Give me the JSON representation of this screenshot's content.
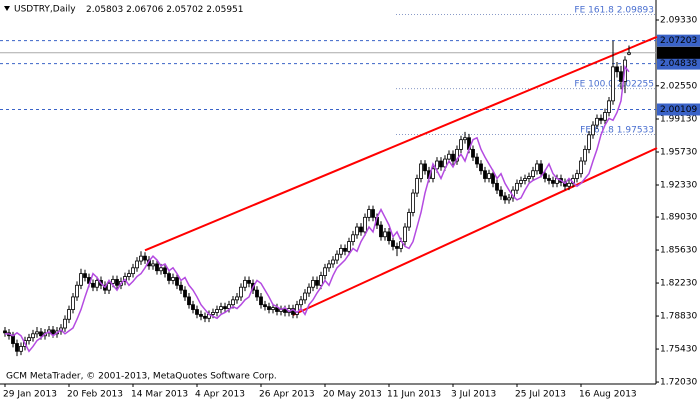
{
  "chart_data": {
    "type": "candlestick",
    "symbol": "USDTRY,Daily",
    "footer": "GCM MetaTrader, © 2001-2013, MetaQuotes Software Corp.",
    "candle_color": "#000000",
    "ma_color": "#b44be1",
    "categories": [
      "29 Jan 2013",
      null,
      null,
      null,
      null,
      null,
      null,
      null,
      null,
      null,
      null,
      null,
      null,
      null,
      null,
      null,
      "20 Feb 2013",
      null,
      null,
      null,
      null,
      null,
      null,
      null,
      null,
      null,
      null,
      null,
      null,
      null,
      null,
      null,
      "14 Mar 2013",
      null,
      null,
      null,
      null,
      null,
      null,
      null,
      null,
      null,
      null,
      null,
      null,
      null,
      null,
      null,
      "4 Apr 2013",
      null,
      null,
      null,
      null,
      null,
      null,
      null,
      null,
      null,
      null,
      null,
      null,
      null,
      null,
      null,
      "26 Apr 2013",
      null,
      null,
      null,
      null,
      null,
      null,
      null,
      null,
      null,
      null,
      null,
      null,
      null,
      null,
      null,
      "20 May 2013",
      null,
      null,
      null,
      null,
      null,
      null,
      null,
      null,
      null,
      null,
      null,
      null,
      null,
      null,
      null,
      "11 Jun 2013",
      null,
      null,
      null,
      null,
      null,
      null,
      null,
      null,
      null,
      null,
      null,
      null,
      null,
      null,
      null,
      "3 Jul 2013",
      null,
      null,
      null,
      null,
      null,
      null,
      null,
      null,
      null,
      null,
      null,
      null,
      null,
      null,
      null,
      "25 Jul 2013",
      null,
      null,
      null,
      null,
      null,
      null,
      null,
      null,
      null,
      null,
      null,
      null,
      null,
      null,
      null,
      "16 Aug 2013",
      null,
      null,
      null,
      null,
      null,
      null,
      null,
      null,
      null,
      null,
      null,
      null
    ],
    "ohlc": [
      [
        1.773,
        1.777,
        1.767,
        1.771
      ],
      [
        1.771,
        1.775,
        1.764,
        1.768
      ],
      [
        1.768,
        1.772,
        1.756,
        1.76
      ],
      [
        1.76,
        1.764,
        1.747,
        1.752
      ],
      [
        1.752,
        1.761,
        1.748,
        1.757
      ],
      [
        1.757,
        1.767,
        1.753,
        1.763
      ],
      [
        1.763,
        1.77,
        1.759,
        1.766
      ],
      [
        1.766,
        1.774,
        1.762,
        1.77
      ],
      [
        1.77,
        1.777,
        1.766,
        1.772
      ],
      [
        1.772,
        1.776,
        1.764,
        1.768
      ],
      [
        1.768,
        1.775,
        1.764,
        1.771
      ],
      [
        1.771,
        1.778,
        1.767,
        1.774
      ],
      [
        1.774,
        1.778,
        1.766,
        1.77
      ],
      [
        1.77,
        1.777,
        1.766,
        1.773
      ],
      [
        1.773,
        1.78,
        1.769,
        1.776
      ],
      [
        1.776,
        1.789,
        1.772,
        1.785
      ],
      [
        1.785,
        1.799,
        1.781,
        1.795
      ],
      [
        1.795,
        1.812,
        1.791,
        1.808
      ],
      [
        1.808,
        1.824,
        1.804,
        1.82
      ],
      [
        1.82,
        1.837,
        1.816,
        1.832
      ],
      [
        1.832,
        1.836,
        1.824,
        1.828
      ],
      [
        1.828,
        1.832,
        1.818,
        1.822
      ],
      [
        1.822,
        1.826,
        1.814,
        1.818
      ],
      [
        1.818,
        1.829,
        1.814,
        1.825
      ],
      [
        1.825,
        1.829,
        1.816,
        1.82
      ],
      [
        1.82,
        1.824,
        1.811,
        1.815
      ],
      [
        1.815,
        1.826,
        1.811,
        1.822
      ],
      [
        1.822,
        1.83,
        1.818,
        1.826
      ],
      [
        1.826,
        1.83,
        1.816,
        1.82
      ],
      [
        1.82,
        1.828,
        1.816,
        1.824
      ],
      [
        1.824,
        1.833,
        1.82,
        1.829
      ],
      [
        1.829,
        1.836,
        1.825,
        1.832
      ],
      [
        1.832,
        1.842,
        1.828,
        1.838
      ],
      [
        1.838,
        1.849,
        1.834,
        1.845
      ],
      [
        1.845,
        1.855,
        1.841,
        1.85
      ],
      [
        1.85,
        1.854,
        1.842,
        1.846
      ],
      [
        1.846,
        1.85,
        1.836,
        1.84
      ],
      [
        1.84,
        1.846,
        1.836,
        1.842
      ],
      [
        1.842,
        1.846,
        1.831,
        1.835
      ],
      [
        1.835,
        1.842,
        1.831,
        1.838
      ],
      [
        1.838,
        1.842,
        1.828,
        1.832
      ],
      [
        1.832,
        1.836,
        1.821,
        1.825
      ],
      [
        1.825,
        1.832,
        1.821,
        1.828
      ],
      [
        1.828,
        1.832,
        1.816,
        1.82
      ],
      [
        1.82,
        1.824,
        1.811,
        1.815
      ],
      [
        1.815,
        1.819,
        1.804,
        1.808
      ],
      [
        1.808,
        1.812,
        1.796,
        1.8
      ],
      [
        1.8,
        1.804,
        1.791,
        1.795
      ],
      [
        1.795,
        1.799,
        1.786,
        1.79
      ],
      [
        1.79,
        1.794,
        1.784,
        1.788
      ],
      [
        1.788,
        1.792,
        1.782,
        1.786
      ],
      [
        1.786,
        1.794,
        1.782,
        1.79
      ],
      [
        1.79,
        1.796,
        1.786,
        1.792
      ],
      [
        1.792,
        1.799,
        1.788,
        1.795
      ],
      [
        1.795,
        1.802,
        1.791,
        1.798
      ],
      [
        1.798,
        1.802,
        1.792,
        1.796
      ],
      [
        1.796,
        1.804,
        1.792,
        1.8
      ],
      [
        1.8,
        1.809,
        1.796,
        1.805
      ],
      [
        1.805,
        1.812,
        1.801,
        1.808
      ],
      [
        1.808,
        1.822,
        1.804,
        1.818
      ],
      [
        1.818,
        1.829,
        1.814,
        1.825
      ],
      [
        1.825,
        1.829,
        1.818,
        1.822
      ],
      [
        1.822,
        1.826,
        1.811,
        1.815
      ],
      [
        1.815,
        1.819,
        1.804,
        1.808
      ],
      [
        1.808,
        1.812,
        1.796,
        1.8
      ],
      [
        1.8,
        1.804,
        1.794,
        1.798
      ],
      [
        1.798,
        1.802,
        1.791,
        1.795
      ],
      [
        1.795,
        1.801,
        1.791,
        1.797
      ],
      [
        1.797,
        1.801,
        1.789,
        1.793
      ],
      [
        1.793,
        1.799,
        1.789,
        1.795
      ],
      [
        1.795,
        1.799,
        1.788,
        1.792
      ],
      [
        1.792,
        1.8,
        1.788,
        1.796
      ],
      [
        1.796,
        1.8,
        1.786,
        1.79
      ],
      [
        1.79,
        1.804,
        1.786,
        1.8
      ],
      [
        1.8,
        1.809,
        1.796,
        1.805
      ],
      [
        1.805,
        1.816,
        1.801,
        1.812
      ],
      [
        1.812,
        1.822,
        1.808,
        1.818
      ],
      [
        1.818,
        1.829,
        1.814,
        1.825
      ],
      [
        1.825,
        1.829,
        1.816,
        1.82
      ],
      [
        1.82,
        1.834,
        1.816,
        1.83
      ],
      [
        1.83,
        1.842,
        1.826,
        1.838
      ],
      [
        1.838,
        1.846,
        1.834,
        1.842
      ],
      [
        1.842,
        1.85,
        1.838,
        1.846
      ],
      [
        1.846,
        1.856,
        1.842,
        1.852
      ],
      [
        1.852,
        1.862,
        1.848,
        1.858
      ],
      [
        1.858,
        1.862,
        1.851,
        1.855
      ],
      [
        1.855,
        1.869,
        1.851,
        1.865
      ],
      [
        1.865,
        1.876,
        1.861,
        1.872
      ],
      [
        1.872,
        1.884,
        1.868,
        1.88
      ],
      [
        1.88,
        1.884,
        1.871,
        1.875
      ],
      [
        1.875,
        1.894,
        1.871,
        1.89
      ],
      [
        1.89,
        1.902,
        1.886,
        1.898
      ],
      [
        1.898,
        1.902,
        1.886,
        1.89
      ],
      [
        1.89,
        1.894,
        1.878,
        1.882
      ],
      [
        1.882,
        1.886,
        1.866,
        1.87
      ],
      [
        1.87,
        1.879,
        1.866,
        1.875
      ],
      [
        1.875,
        1.879,
        1.862,
        1.866
      ],
      [
        1.866,
        1.87,
        1.856,
        1.86
      ],
      [
        1.86,
        1.864,
        1.85,
        1.858
      ],
      [
        1.858,
        1.869,
        1.854,
        1.865
      ],
      [
        1.865,
        1.884,
        1.861,
        1.88
      ],
      [
        1.88,
        1.899,
        1.876,
        1.895
      ],
      [
        1.895,
        1.919,
        1.891,
        1.915
      ],
      [
        1.915,
        1.934,
        1.911,
        1.93
      ],
      [
        1.93,
        1.949,
        1.926,
        1.945
      ],
      [
        1.945,
        1.949,
        1.934,
        1.938
      ],
      [
        1.938,
        1.942,
        1.926,
        1.93
      ],
      [
        1.93,
        1.944,
        1.926,
        1.94
      ],
      [
        1.94,
        1.952,
        1.936,
        1.948
      ],
      [
        1.948,
        1.952,
        1.938,
        1.942
      ],
      [
        1.942,
        1.954,
        1.938,
        1.95
      ],
      [
        1.95,
        1.959,
        1.946,
        1.955
      ],
      [
        1.955,
        1.959,
        1.944,
        1.948
      ],
      [
        1.948,
        1.964,
        1.944,
        1.96
      ],
      [
        1.96,
        1.974,
        1.956,
        1.97
      ],
      [
        1.97,
        1.978,
        1.966,
        1.972
      ],
      [
        1.972,
        1.976,
        1.956,
        1.96
      ],
      [
        1.96,
        1.964,
        1.948,
        1.952
      ],
      [
        1.952,
        1.956,
        1.941,
        1.945
      ],
      [
        1.945,
        1.949,
        1.934,
        1.938
      ],
      [
        1.938,
        1.942,
        1.926,
        1.93
      ],
      [
        1.93,
        1.939,
        1.926,
        1.935
      ],
      [
        1.935,
        1.939,
        1.921,
        1.925
      ],
      [
        1.925,
        1.929,
        1.914,
        1.918
      ],
      [
        1.918,
        1.922,
        1.908,
        1.912
      ],
      [
        1.912,
        1.916,
        1.904,
        1.908
      ],
      [
        1.908,
        1.914,
        1.904,
        1.91
      ],
      [
        1.91,
        1.922,
        1.906,
        1.918
      ],
      [
        1.918,
        1.929,
        1.914,
        1.925
      ],
      [
        1.925,
        1.932,
        1.921,
        1.928
      ],
      [
        1.928,
        1.934,
        1.924,
        1.93
      ],
      [
        1.93,
        1.936,
        1.926,
        1.932
      ],
      [
        1.932,
        1.942,
        1.928,
        1.938
      ],
      [
        1.938,
        1.949,
        1.934,
        1.945
      ],
      [
        1.945,
        1.949,
        1.931,
        1.935
      ],
      [
        1.935,
        1.939,
        1.926,
        1.93
      ],
      [
        1.93,
        1.934,
        1.924,
        1.928
      ],
      [
        1.928,
        1.932,
        1.921,
        1.925
      ],
      [
        1.925,
        1.934,
        1.921,
        1.93
      ],
      [
        1.93,
        1.934,
        1.922,
        1.926
      ],
      [
        1.926,
        1.93,
        1.918,
        1.922
      ],
      [
        1.922,
        1.929,
        1.918,
        1.925
      ],
      [
        1.925,
        1.934,
        1.921,
        1.93
      ],
      [
        1.93,
        1.939,
        1.926,
        1.935
      ],
      [
        1.935,
        1.952,
        1.931,
        1.948
      ],
      [
        1.948,
        1.964,
        1.944,
        1.96
      ],
      [
        1.96,
        1.979,
        1.956,
        1.975
      ],
      [
        1.975,
        1.989,
        1.971,
        1.985
      ],
      [
        1.985,
        1.996,
        1.981,
        1.992
      ],
      [
        1.992,
        1.996,
        1.986,
        1.99
      ],
      [
        1.99,
        2.002,
        1.986,
        1.998
      ],
      [
        1.998,
        2.014,
        1.994,
        2.01
      ],
      [
        2.01,
        2.072,
        2.006,
        2.045
      ],
      [
        2.045,
        2.05,
        2.034,
        2.04
      ],
      [
        2.04,
        2.046,
        2.022,
        2.03
      ],
      [
        2.03,
        2.056,
        2.018,
        2.052
      ],
      [
        2.05803,
        2.06706,
        2.05702,
        2.05951
      ]
    ],
    "ma": [
      1.77,
      1.77,
      1.768,
      1.771,
      1.768,
      1.76,
      1.752,
      1.757,
      1.763,
      1.766,
      1.77,
      1.772,
      1.768,
      1.771,
      1.774,
      1.77,
      1.773,
      1.776,
      1.785,
      1.795,
      1.808,
      1.82,
      1.832,
      1.828,
      1.822,
      1.818,
      1.825,
      1.82,
      1.815,
      1.822,
      1.826,
      1.82,
      1.824,
      1.829,
      1.832,
      1.838,
      1.845,
      1.85,
      1.846,
      1.84,
      1.842,
      1.835,
      1.838,
      1.832,
      1.825,
      1.828,
      1.82,
      1.815,
      1.808,
      1.8,
      1.795,
      1.79,
      1.788,
      1.786,
      1.79,
      1.792,
      1.795,
      1.798,
      1.796,
      1.8,
      1.805,
      1.808,
      1.818,
      1.825,
      1.822,
      1.815,
      1.808,
      1.8,
      1.798,
      1.795,
      1.797,
      1.793,
      1.795,
      1.792,
      1.796,
      1.79,
      1.8,
      1.805,
      1.812,
      1.818,
      1.825,
      1.82,
      1.83,
      1.838,
      1.842,
      1.846,
      1.852,
      1.858,
      1.855,
      1.865,
      1.872,
      1.88,
      1.875,
      1.89,
      1.898,
      1.89,
      1.882,
      1.87,
      1.875,
      1.866,
      1.86,
      1.858,
      1.865,
      1.88,
      1.895,
      1.915,
      1.93,
      1.945,
      1.938,
      1.93,
      1.94,
      1.948,
      1.942,
      1.95,
      1.955,
      1.948,
      1.96,
      1.97,
      1.972,
      1.96,
      1.952,
      1.945,
      1.938,
      1.93,
      1.935,
      1.925,
      1.918,
      1.912,
      1.908,
      1.91,
      1.918,
      1.925,
      1.928,
      1.93,
      1.932,
      1.938,
      1.945,
      1.935,
      1.93,
      1.928,
      1.925,
      1.93,
      1.926,
      1.922,
      1.925,
      1.93,
      1.935,
      1.948,
      1.96,
      1.975,
      1.985,
      1.992,
      1.99,
      1.998,
      2.01,
      2.045,
      2.04
    ],
    "ylim": [
      1.7183,
      2.1139
    ],
    "yticks": [
      {
        "value": 2.0933,
        "label": "2.09330"
      },
      {
        "value": 2.0255,
        "label": "2.02550"
      },
      {
        "value": 1.9913,
        "label": "1.99130"
      },
      {
        "value": 1.9573,
        "label": "1.95730"
      },
      {
        "value": 1.9233,
        "label": "1.92330"
      },
      {
        "value": 1.8903,
        "label": "1.89030"
      },
      {
        "value": 1.8563,
        "label": "1.85630"
      },
      {
        "value": 1.8223,
        "label": "1.82230"
      },
      {
        "value": 1.7883,
        "label": "1.78830"
      },
      {
        "value": 1.7543,
        "label": "1.75430"
      },
      {
        "value": 1.7203,
        "label": "1.72030"
      }
    ],
    "levels": [
      {
        "value": 2.07203,
        "color": "#3a63c8"
      },
      {
        "value": 2.04838,
        "color": "#3a63c8"
      },
      {
        "value": 2.00109,
        "color": "#3a63c8"
      }
    ],
    "fe_levels": [
      {
        "label": "FE 161.8",
        "value": 2.09893
      },
      {
        "label": "FE 100.0",
        "value": 2.02255
      },
      {
        "label": "FE 61.8",
        "value": 1.97533
      }
    ],
    "fe_color": "#4a6fd0",
    "trendlines": [
      {
        "color": "#ff0000",
        "start": [
          35,
          1.856
        ],
        "end": [
          163,
          2.076
        ]
      },
      {
        "color": "#ff0000",
        "start": [
          72,
          1.7894
        ],
        "end": [
          163,
          1.9614
        ]
      }
    ]
  }
}
